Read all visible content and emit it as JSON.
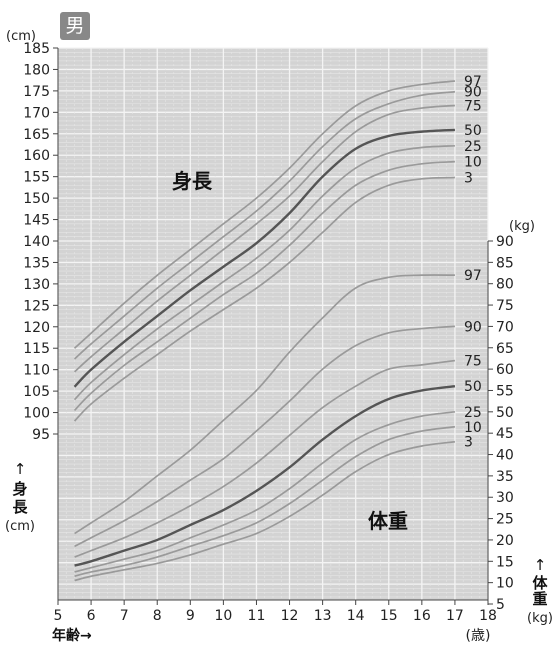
{
  "badge": "男",
  "chart_data": {
    "type": "line",
    "grid": true,
    "x": [
      5.5,
      6,
      7,
      8,
      9,
      10,
      11,
      12,
      13,
      14,
      15,
      16,
      17
    ],
    "xlim": [
      5,
      18
    ],
    "xticks": [
      "5",
      "6",
      "7",
      "8",
      "9",
      "10",
      "11",
      "12",
      "13",
      "14",
      "15",
      "16",
      "17",
      "18"
    ],
    "xlabel": "年齢→",
    "xunit": "(歳)",
    "height": {
      "label": "身長",
      "axis_label": [
        "↑",
        "身",
        "長"
      ],
      "unit": "(cm)",
      "ylim": [
        95,
        185
      ],
      "yticks": [
        "95",
        "100",
        "105",
        "110",
        "115",
        "120",
        "125",
        "130",
        "135",
        "140",
        "145",
        "150",
        "155",
        "160",
        "165",
        "170",
        "175",
        "180",
        "185"
      ],
      "series": [
        {
          "name": "97",
          "values": [
            115,
            118.5,
            125.5,
            132,
            138,
            144,
            150,
            157,
            165,
            171.5,
            175,
            176.5,
            177.3
          ]
        },
        {
          "name": "90",
          "values": [
            112.5,
            116,
            122.5,
            129,
            135,
            141,
            147,
            154,
            162,
            168.5,
            172,
            174,
            174.8
          ]
        },
        {
          "name": "75",
          "values": [
            109.5,
            113,
            119.5,
            126,
            132,
            138,
            144,
            150.5,
            158.5,
            165.5,
            169.5,
            171,
            171.6
          ]
        },
        {
          "name": "50",
          "values": [
            106,
            110,
            116.5,
            122.5,
            128.5,
            134,
            139.5,
            146.5,
            155,
            161.5,
            164.5,
            165.5,
            165.9
          ]
        },
        {
          "name": "25",
          "values": [
            103,
            107,
            113.5,
            119.5,
            125,
            130.5,
            136,
            142.5,
            150.5,
            157,
            160.5,
            161.8,
            162.2
          ]
        },
        {
          "name": "10",
          "values": [
            100.5,
            104.5,
            111,
            116.5,
            122,
            127.5,
            132.5,
            139,
            146.5,
            153,
            156.5,
            158,
            158.5
          ]
        },
        {
          "name": "3",
          "values": [
            98,
            102,
            108,
            113.5,
            119,
            124,
            129,
            135,
            142,
            149,
            153,
            154.5,
            154.8
          ]
        }
      ]
    },
    "weight": {
      "label": "体重",
      "axis_label": [
        "↑",
        "体",
        "重"
      ],
      "unit": "(kg)",
      "ylim": [
        5,
        90
      ],
      "yticks": [
        "5",
        "10",
        "15",
        "20",
        "25",
        "30",
        "35",
        "40",
        "45",
        "50",
        "55",
        "60",
        "65",
        "70",
        "75",
        "80",
        "85",
        "90"
      ],
      "series": [
        {
          "name": "97",
          "values": [
            21.5,
            24,
            29,
            35,
            41,
            48,
            55,
            64,
            72,
            79,
            81.5,
            82,
            82
          ]
        },
        {
          "name": "90",
          "values": [
            18.5,
            20.5,
            24.5,
            29,
            34,
            39,
            45.5,
            52.5,
            60,
            65.5,
            68.5,
            69.5,
            70
          ]
        },
        {
          "name": "75",
          "values": [
            16,
            17.5,
            20.5,
            24,
            28,
            32.5,
            38,
            44.5,
            51,
            56,
            60,
            61,
            62
          ]
        },
        {
          "name": "50",
          "values": [
            14,
            15,
            17.5,
            20,
            23.5,
            27,
            31.5,
            37,
            43.5,
            49,
            53,
            55,
            56
          ]
        },
        {
          "name": "25",
          "values": [
            12.5,
            13.5,
            15.5,
            17.5,
            20.5,
            23.5,
            27,
            32,
            38,
            43.5,
            47,
            49,
            50
          ]
        },
        {
          "name": "10",
          "values": [
            11.5,
            12.5,
            14,
            16,
            18.5,
            21,
            24,
            28.5,
            34,
            39.5,
            43.5,
            45.5,
            46.5
          ]
        },
        {
          "name": "3",
          "values": [
            10.5,
            11.5,
            13,
            14.5,
            16.5,
            19,
            21.5,
            25.5,
            30.5,
            36,
            40,
            42,
            43
          ]
        }
      ]
    }
  }
}
